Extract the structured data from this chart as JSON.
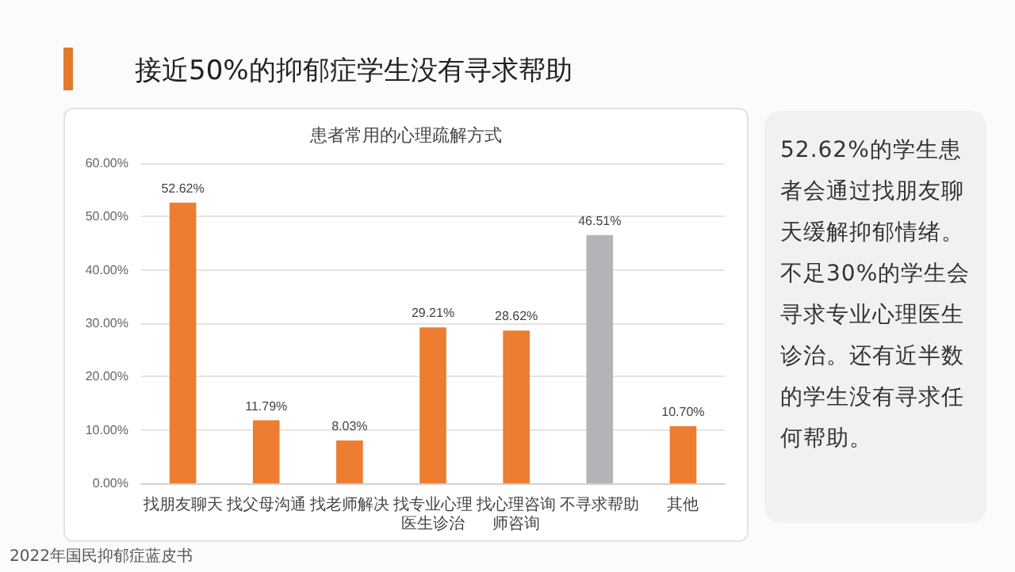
{
  "chart_data": {
    "type": "bar",
    "title": "接近50%的抑郁症学生没有寻求帮助",
    "subtitle": "患者常用的心理疏解方式",
    "categories": [
      "找朋友聊天",
      "找父母沟通",
      "找老师解决",
      "找专业心理医生诊治",
      "找心理咨询师咨询",
      "不寻求帮助",
      "其他"
    ],
    "values": [
      52.62,
      11.79,
      8.03,
      29.21,
      28.62,
      46.51,
      10.7
    ],
    "colors": [
      "#ed7d31",
      "#ed7d31",
      "#ed7d31",
      "#ed7d31",
      "#ed7d31",
      "#b4b4b8",
      "#ed7d31"
    ],
    "value_labels": [
      "52.62%",
      "11.79%",
      "8.03%",
      "29.21%",
      "28.62%",
      "46.51%",
      "10.70%"
    ],
    "ylim": [
      0,
      60
    ],
    "yticks": [
      {
        "value": 0,
        "label": "0.00%"
      },
      {
        "value": 10,
        "label": "10.00%"
      },
      {
        "value": 20,
        "label": "20.00%"
      },
      {
        "value": 30,
        "label": "30.00%"
      },
      {
        "value": 40,
        "label": "40.00%"
      },
      {
        "value": 50,
        "label": "50.00%"
      },
      {
        "value": 60,
        "label": "60.00%"
      }
    ],
    "grid": "y",
    "annotations": [
      "52.62%的学生患者会通过找朋友聊天缓解抑郁情绪。",
      "不足30%的学生会寻求专业心理医生诊治。还有近半数的学生没有寻求任何帮助。",
      "2022年国民抑郁症蓝皮书"
    ]
  }
}
